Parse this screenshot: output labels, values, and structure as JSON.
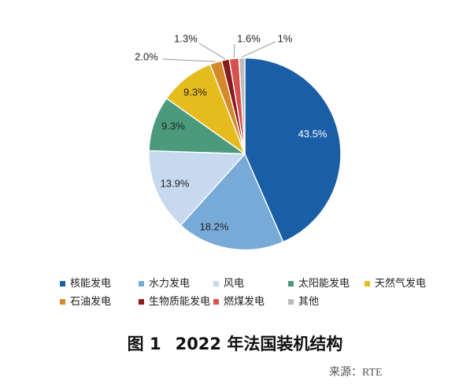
{
  "figure": {
    "label": "图 1",
    "source": "来源：RTE"
  },
  "chart_data": {
    "type": "pie",
    "title": "2022 年法国装机结构",
    "categories": [
      "核能发电",
      "水力发电",
      "风电",
      "太阳能发电",
      "天然气发电",
      "石油发电",
      "生物质能发电",
      "燃煤发电",
      "其他"
    ],
    "values": [
      43.5,
      18.2,
      13.9,
      9.3,
      9.3,
      2.0,
      1.3,
      1.6,
      1
    ],
    "value_labels": [
      "43.5%",
      "18.2%",
      "13.9%",
      "9.3%",
      "9.3%",
      "2.0%",
      "1.3%",
      "1.6%",
      "1%"
    ],
    "unit": "%",
    "colors": [
      "#1a5ea6",
      "#78aad8",
      "#c6d9ef",
      "#4b9a7d",
      "#e5bb1d",
      "#d48a2a",
      "#8a1b1d",
      "#d6524e",
      "#bcbcbc"
    ],
    "legend_position": "bottom"
  }
}
